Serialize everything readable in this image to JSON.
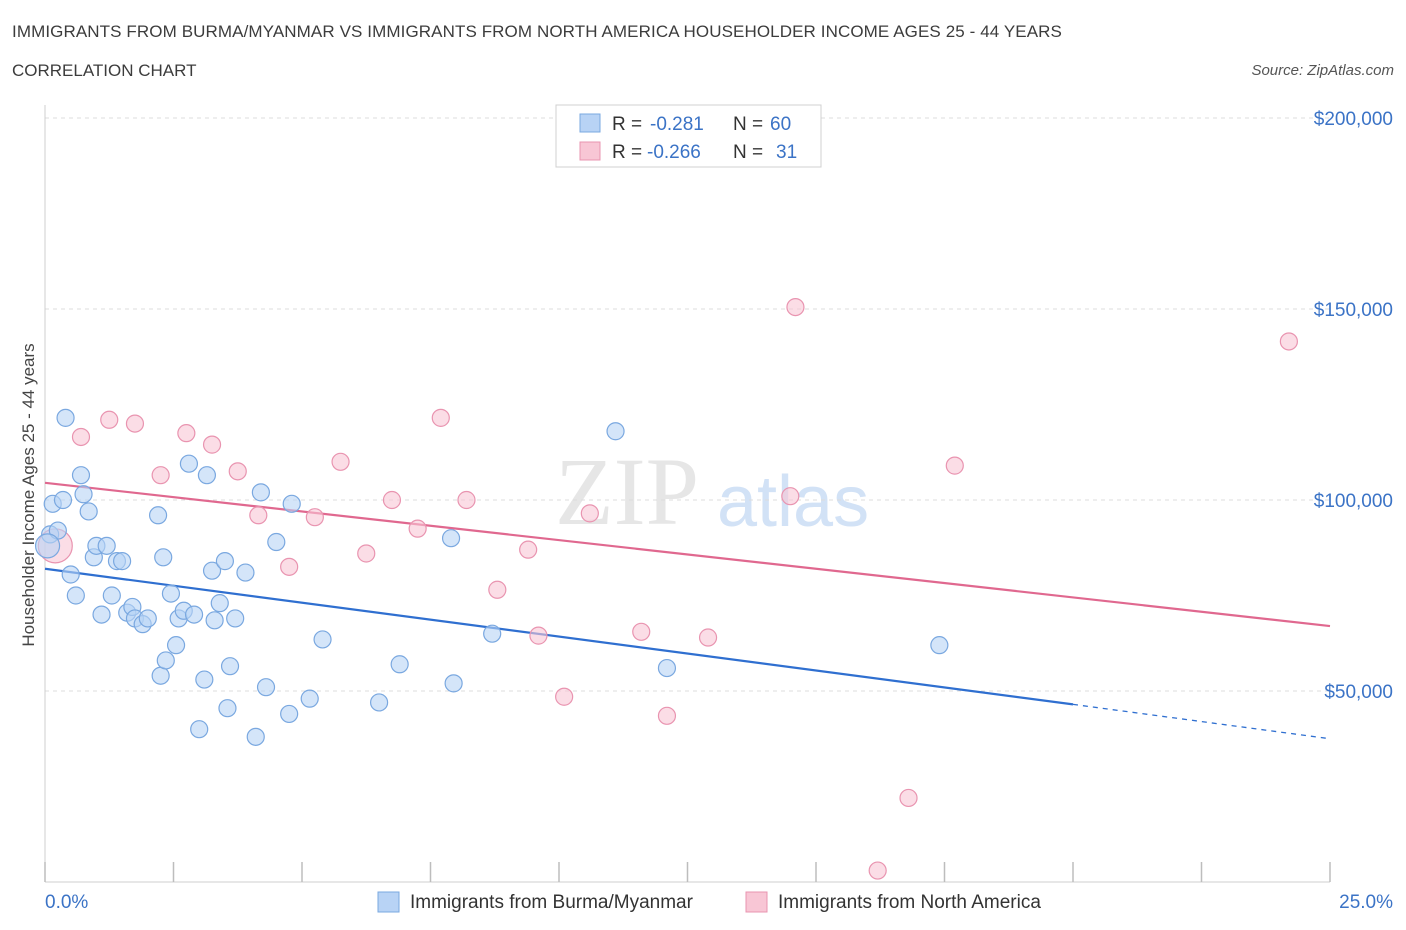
{
  "title": "IMMIGRANTS FROM BURMA/MYANMAR VS IMMIGRANTS FROM NORTH AMERICA HOUSEHOLDER INCOME AGES 25 - 44 YEARS",
  "subtitle": "CORRELATION CHART",
  "source": "Source: ZipAtlas.com",
  "watermark": {
    "zip": "ZIP",
    "atlas": "atlas"
  },
  "legend_stats": [
    {
      "r_label": "R =",
      "r_value": "-0.281",
      "n_label": "N =",
      "n_value": "60"
    },
    {
      "r_label": "R =",
      "r_value": "-0.266",
      "n_label": "N =",
      "n_value": "31"
    }
  ],
  "colors": {
    "series1_fill": "#b8d3f5",
    "series1_stroke": "#7aa8e0",
    "series1_line": "#2f6fd0",
    "series2_fill": "#f8c6d5",
    "series2_stroke": "#e994b0",
    "series2_line": "#e0688f",
    "tick_label": "#3b73c6"
  },
  "chart_data": {
    "type": "scatter",
    "title": "IMMIGRANTS FROM BURMA/MYANMAR VS IMMIGRANTS FROM NORTH AMERICA HOUSEHOLDER INCOME AGES 25 - 44 YEARS",
    "xlabel": "",
    "ylabel": "Householder Income Ages 25 - 44 years",
    "xlim": [
      0,
      25
    ],
    "ylim": [
      0,
      200000
    ],
    "x_tick_labels": [
      "0.0%",
      "25.0%"
    ],
    "y_ticks": [
      50000,
      100000,
      150000,
      200000
    ],
    "y_tick_labels": [
      "$50,000",
      "$100,000",
      "$150,000",
      "$200,000"
    ],
    "grid": true,
    "legend_position": "bottom",
    "series": [
      {
        "name": "Immigrants from Burma/Myanmar",
        "points": [
          [
            0.1,
            91000
          ],
          [
            0.15,
            99000
          ],
          [
            0.25,
            92000
          ],
          [
            0.35,
            100000
          ],
          [
            0.4,
            121500
          ],
          [
            0.5,
            80500
          ],
          [
            0.6,
            75000
          ],
          [
            0.7,
            106500
          ],
          [
            0.75,
            101500
          ],
          [
            0.85,
            97000
          ],
          [
            0.95,
            85000
          ],
          [
            1.0,
            88000
          ],
          [
            1.1,
            70000
          ],
          [
            1.2,
            88000
          ],
          [
            1.3,
            75000
          ],
          [
            1.4,
            84000
          ],
          [
            1.5,
            84000
          ],
          [
            1.6,
            70500
          ],
          [
            1.7,
            72000
          ],
          [
            1.75,
            69000
          ],
          [
            1.9,
            67500
          ],
          [
            2.0,
            69000
          ],
          [
            2.2,
            96000
          ],
          [
            2.25,
            54000
          ],
          [
            2.35,
            58000
          ],
          [
            2.3,
            85000
          ],
          [
            2.45,
            75500
          ],
          [
            2.55,
            62000
          ],
          [
            2.6,
            69000
          ],
          [
            2.7,
            71000
          ],
          [
            2.8,
            109500
          ],
          [
            2.9,
            70000
          ],
          [
            3.0,
            40000
          ],
          [
            3.1,
            53000
          ],
          [
            3.15,
            106500
          ],
          [
            3.25,
            81500
          ],
          [
            3.3,
            68500
          ],
          [
            3.4,
            73000
          ],
          [
            3.5,
            84000
          ],
          [
            3.55,
            45500
          ],
          [
            3.6,
            56500
          ],
          [
            3.7,
            69000
          ],
          [
            3.9,
            81000
          ],
          [
            4.1,
            38000
          ],
          [
            4.2,
            102000
          ],
          [
            4.3,
            51000
          ],
          [
            4.5,
            89000
          ],
          [
            4.75,
            44000
          ],
          [
            4.8,
            99000
          ],
          [
            5.15,
            48000
          ],
          [
            5.4,
            63500
          ],
          [
            6.5,
            47000
          ],
          [
            6.9,
            57000
          ],
          [
            7.9,
            90000
          ],
          [
            7.95,
            52000
          ],
          [
            8.7,
            65000
          ],
          [
            11.1,
            118000
          ],
          [
            12.1,
            56000
          ],
          [
            17.4,
            62000
          ],
          [
            0.05,
            88000
          ]
        ],
        "trend": {
          "x0": 0,
          "y0": 82000,
          "x1": 20,
          "y1": 46500,
          "dashed_to_x": 25,
          "dashed_to_y": 37500
        }
      },
      {
        "name": "Immigrants from North America",
        "points": [
          [
            0.2,
            88000
          ],
          [
            0.7,
            116500
          ],
          [
            1.25,
            121000
          ],
          [
            1.75,
            120000
          ],
          [
            2.25,
            106500
          ],
          [
            2.75,
            117500
          ],
          [
            3.25,
            114500
          ],
          [
            3.75,
            107500
          ],
          [
            4.15,
            96000
          ],
          [
            4.75,
            82500
          ],
          [
            5.25,
            95500
          ],
          [
            5.75,
            110000
          ],
          [
            6.25,
            86000
          ],
          [
            6.75,
            100000
          ],
          [
            7.25,
            92500
          ],
          [
            7.7,
            121500
          ],
          [
            8.2,
            100000
          ],
          [
            8.8,
            76500
          ],
          [
            9.4,
            87000
          ],
          [
            9.6,
            64500
          ],
          [
            10.1,
            48500
          ],
          [
            10.6,
            96500
          ],
          [
            11.6,
            65500
          ],
          [
            12.1,
            43500
          ],
          [
            12.9,
            64000
          ],
          [
            14.5,
            101000
          ],
          [
            14.6,
            150500
          ],
          [
            16.8,
            22000
          ],
          [
            17.7,
            109000
          ],
          [
            24.2,
            141500
          ],
          [
            16.2,
            3000
          ]
        ],
        "trend": {
          "x0": 0,
          "y0": 104500,
          "x1": 25,
          "y1": 67000
        }
      }
    ]
  }
}
